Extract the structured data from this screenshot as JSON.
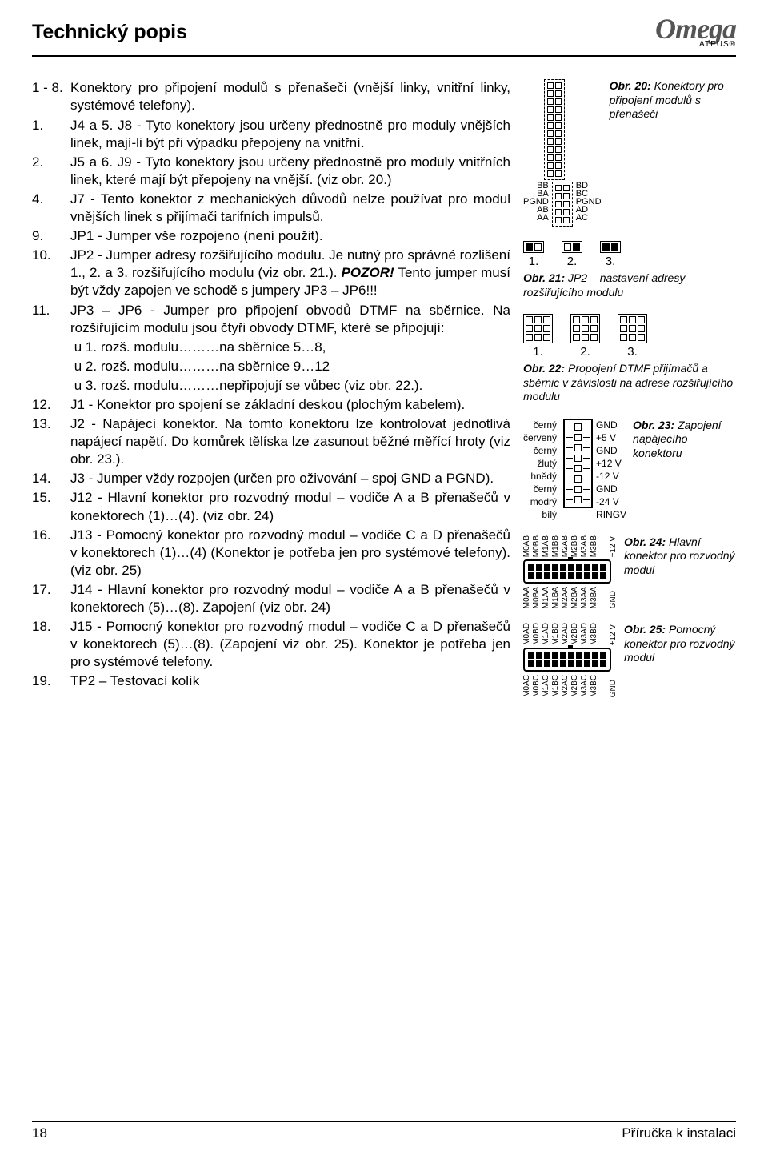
{
  "header": {
    "title": "Technický popis",
    "logo_main": "Omega",
    "logo_sub": "ATEUS®"
  },
  "items": [
    {
      "n": "1 - 8.",
      "t": "Konektory pro připojení modulů s přenašeči (vnější linky, vnitřní linky, systémové telefony)."
    },
    {
      "n": "1.",
      "t": "J4 a 5. J8 - Tyto konektory jsou určeny přednostně pro moduly vnějších linek, mají-li být při výpadku přepojeny na vnitřní."
    },
    {
      "n": "2.",
      "t": "J5 a 6. J9 -  Tyto konektory jsou určeny přednostně pro moduly vnitřních linek, které mají být přepojeny na vnější. (viz obr. 20.)"
    },
    {
      "n": "4.",
      "t": "J7 - Tento konektor z mechanických důvodů nelze používat pro modul vnějších linek s přijímači tarifních impulsů."
    },
    {
      "n": "9.",
      "t": "JP1 - Jumper vše rozpojeno (není použit)."
    },
    {
      "n": "10.",
      "t": "JP2 - Jumper adresy rozšiřujícího modulu. Je nutný pro správné rozlišení 1., 2. a 3. rozšiřujícího modulu (viz obr. 21.). POZOR! Tento jumper musí být vždy zapojen ve schodě s jumpery JP3 – JP6!!!"
    },
    {
      "n": "11.",
      "t": "JP3 – JP6 - Jumper pro připojení obvodů DTMF na sběrnice. Na rozšiřujícím modulu jsou čtyři obvody DTMF, které se připojují:"
    },
    {
      "n": "",
      "t": "u 1. rozš. modulu………na sběrnice 5…8,"
    },
    {
      "n": "",
      "t": "u 2. rozš. modulu………na sběrnice 9…12"
    },
    {
      "n": "",
      "t": "u 3. rozš. modulu………nepřipojují se vůbec (viz obr. 22.)."
    },
    {
      "n": "12.",
      "t": "J1 - Konektor pro spojení se základní deskou (plochým kabelem)."
    },
    {
      "n": "13.",
      "t": "J2 - Napájecí konektor. Na tomto konektoru lze kontrolovat jednotlivá napájecí napětí. Do komůrek tělíska lze zasunout běžné měřící hroty (viz obr. 23.)."
    },
    {
      "n": "14.",
      "t": "J3 - Jumper vždy rozpojen (určen pro oživování – spoj GND a PGND)."
    },
    {
      "n": "15.",
      "t": "J12 - Hlavní konektor pro rozvodný modul – vodiče A a B přenašečů v konektorech (1)…(4). (viz obr. 24)"
    },
    {
      "n": "16.",
      "t": "J13 - Pomocný konektor pro rozvodný modul – vodiče C a D přenašečů v konektorech (1)…(4) (Konektor je potřeba jen pro systémové telefony). (viz obr. 25)"
    },
    {
      "n": "17.",
      "t": "J14 - Hlavní konektor pro rozvodný modul – vodiče A a B přenašečů v konektorech (5)…(8). Zapojení (viz obr. 24)"
    },
    {
      "n": "18.",
      "t": "J15 - Pomocný konektor pro rozvodný modul – vodiče C a D přenašečů v konektorech (5)…(8). (Zapojení viz obr. 25). Konektor je potřeba jen pro systémové telefony."
    },
    {
      "n": "19.",
      "t": "TP2 – Testovací kolík"
    }
  ],
  "fig20": {
    "caption_bold": "Obr. 20:",
    "caption": "Konektory pro připojení modulů s přenašeči",
    "left_labels": [
      "BB",
      "BA",
      "PGND",
      "AB",
      "AA"
    ],
    "right_labels": [
      "BD",
      "BC",
      "PGND",
      "AD",
      "AC"
    ]
  },
  "fig21": {
    "labels": [
      "1.",
      "2.",
      "3."
    ],
    "caption_bold": "Obr. 21:",
    "caption": "JP2 – nastavení adresy rozšiřujícího modulu"
  },
  "fig22": {
    "labels": [
      "1.",
      "2.",
      "3."
    ],
    "caption_bold": "Obr. 22:",
    "caption": "Propojení DTMF přijímačů a sběrnic v závislosti na adrese rozšiřujícího modulu"
  },
  "fig23": {
    "wire_colors": [
      "černý",
      "červený",
      "černý",
      "žlutý",
      "hnědý",
      "černý",
      "modrý",
      "bílý"
    ],
    "pin_labels": [
      "GND",
      "+5 V",
      "GND",
      "+12 V",
      "-12 V",
      "GND",
      "-24 V",
      "RINGV"
    ],
    "caption_bold": "Obr. 23:",
    "caption": "Zapojení napájecího konektoru"
  },
  "fig24": {
    "top_labels": [
      "M0AB",
      "M0BB",
      "M1AB",
      "M1BB",
      "M2AB",
      "M2BB",
      "M3AB",
      "M3BB",
      "",
      "+12 V"
    ],
    "bot_labels": [
      "M0AA",
      "M0BA",
      "M1AA",
      "M1BA",
      "M2AA",
      "M2BA",
      "M3AA",
      "M3BA",
      "",
      "GND"
    ],
    "caption_bold": "Obr. 24:",
    "caption": "Hlavní konektor pro rozvodný modul"
  },
  "fig25": {
    "top_labels": [
      "M0AD",
      "M0BD",
      "M1AD",
      "M1BD",
      "M2AD",
      "M2BD",
      "M3AD",
      "M3BD",
      "",
      "+12 V"
    ],
    "bot_labels": [
      "M0AC",
      "M0BC",
      "M1AC",
      "M1BC",
      "M2AC",
      "M2BC",
      "M3AC",
      "M3BC",
      "",
      "GND"
    ],
    "caption_bold": "Obr. 25:",
    "caption": "Pomocný konektor pro rozvodný modul"
  },
  "footer": {
    "page": "18",
    "right": "Příručka k instalaci"
  }
}
